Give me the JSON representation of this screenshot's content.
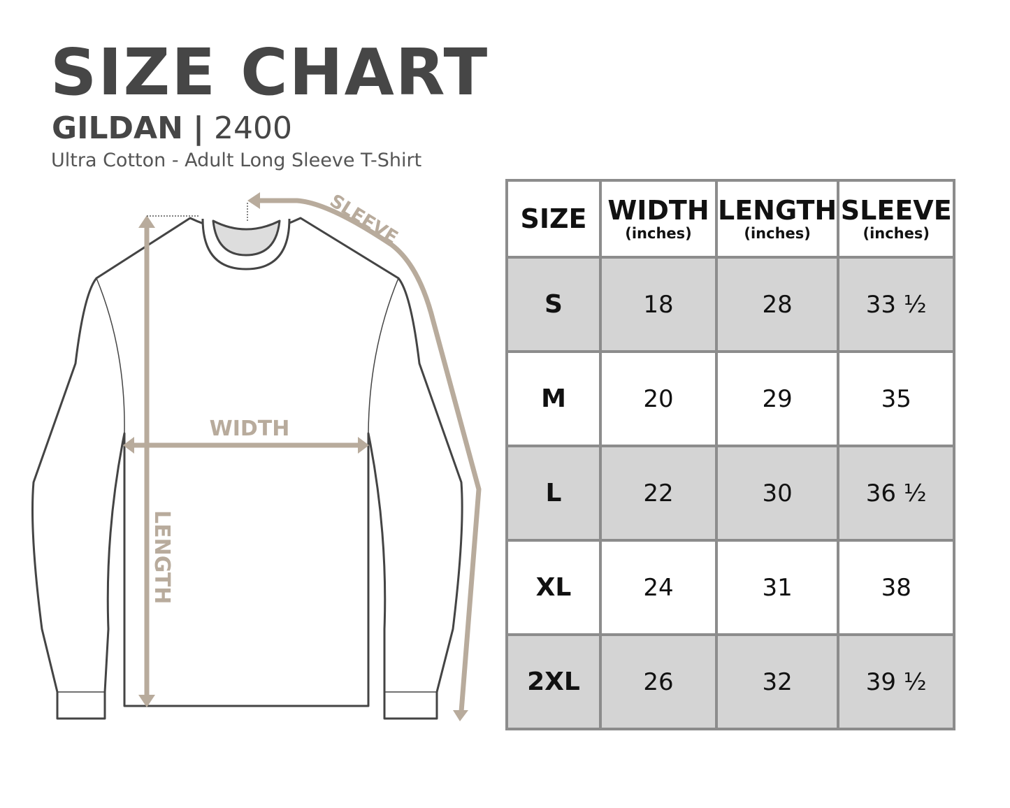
{
  "title": "SIZE CHART",
  "brand": "GILDAN",
  "separator": "|",
  "model": "2400",
  "subtitle": "Ultra Cotton - Adult Long Sleeve T-Shirt",
  "diagram": {
    "width_label": "WIDTH",
    "length_label": "LENGTH",
    "sleeve_label": "SLEEVE",
    "accent_color": "#b8ab9c"
  },
  "table": {
    "headers": [
      {
        "label": "SIZE",
        "unit": ""
      },
      {
        "label": "WIDTH",
        "unit": "(inches)"
      },
      {
        "label": "LENGTH",
        "unit": "(inches)"
      },
      {
        "label": "SLEEVE",
        "unit": "(inches)"
      }
    ],
    "rows": [
      {
        "size": "S",
        "width": "18",
        "length": "28",
        "sleeve": "33 ½"
      },
      {
        "size": "M",
        "width": "20",
        "length": "29",
        "sleeve": "35"
      },
      {
        "size": "L",
        "width": "22",
        "length": "30",
        "sleeve": "36 ½"
      },
      {
        "size": "XL",
        "width": "24",
        "length": "31",
        "sleeve": "38"
      },
      {
        "size": "2XL",
        "width": "26",
        "length": "32",
        "sleeve": "39 ½"
      }
    ]
  }
}
